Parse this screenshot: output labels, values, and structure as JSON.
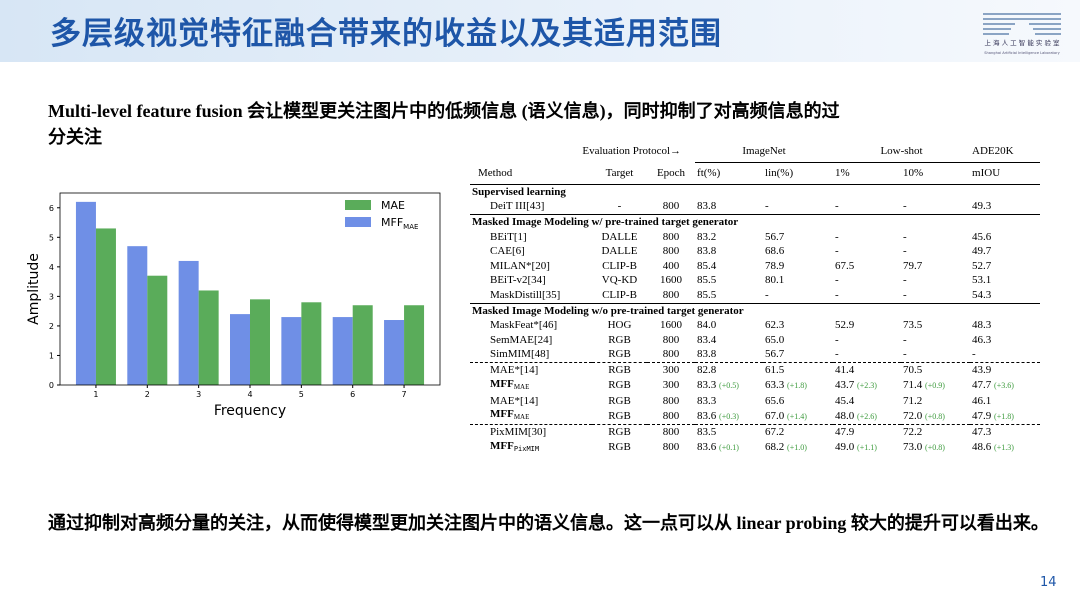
{
  "header": {
    "title": "多层级视觉特征融合带来的收益以及其适用范围",
    "logo_cn": "上 海 人 工 智 能 实 验 室",
    "logo_en": "Shanghai Artificial Intelligence Laboratory"
  },
  "intro": "Multi-level feature fusion 会让模型更关注图片中的低频信息 (语义信息)，同时抑制了对高频信息的过分关注",
  "chart_data": {
    "type": "bar",
    "x_label": "Frequency",
    "y_label": "Amplitude",
    "x": [
      1,
      2,
      3,
      4,
      5,
      6,
      7
    ],
    "xlim": [
      0.3,
      7.7
    ],
    "xticks": [
      1,
      2,
      3,
      4,
      5,
      6,
      7
    ],
    "ylim": [
      0,
      6.5
    ],
    "yticks": [
      0,
      1,
      2,
      3,
      4,
      5,
      6
    ],
    "legend": "upper right",
    "series": [
      {
        "name": "MFF",
        "name_sub": "MAE",
        "color": "#6f8fe6",
        "values": [
          6.2,
          4.7,
          4.2,
          2.4,
          2.3,
          2.3,
          2.2
        ]
      },
      {
        "name": "MAE",
        "color": "#5aac5a",
        "values": [
          5.3,
          3.7,
          3.2,
          2.9,
          2.8,
          2.7,
          2.7
        ]
      }
    ]
  },
  "table": {
    "group_header": [
      "Evaluation Protocol→",
      "ImageNet",
      "Low-shot",
      "ADE20K"
    ],
    "columns": [
      "Method",
      "Target",
      "Epoch",
      "ft(%)",
      "lin(%)",
      "1%",
      "10%",
      "mIOU"
    ],
    "sections": [
      {
        "title": "Supervised learning",
        "groups": [
          [
            [
              "DeiT III[43]",
              "-",
              "800",
              "83.8",
              "-",
              "-",
              "-",
              "49.3"
            ]
          ]
        ]
      },
      {
        "title": "Masked Image Modeling w/ pre-trained target generator",
        "groups": [
          [
            [
              "BEiT[1]",
              "DALLE",
              "800",
              "83.2",
              "56.7",
              "-",
              "-",
              "45.6"
            ],
            [
              "CAE[6]",
              "DALLE",
              "800",
              "83.8",
              "68.6",
              "-",
              "-",
              "49.7"
            ],
            [
              "MILAN*[20]",
              "CLIP-B",
              "400",
              "85.4",
              "78.9",
              "67.5",
              "79.7",
              "52.7"
            ],
            [
              "BEiT-v2[34]",
              "VQ-KD",
              "1600",
              "85.5",
              "80.1",
              "-",
              "-",
              "53.1"
            ],
            [
              "MaskDistill[35]",
              "CLIP-B",
              "800",
              "85.5",
              "-",
              "-",
              "-",
              "54.3"
            ]
          ]
        ]
      },
      {
        "title": "Masked Image Modeling w/o pre-trained target generator",
        "groups": [
          [
            [
              "MaskFeat*[46]",
              "HOG",
              "1600",
              "84.0",
              "62.3",
              "52.9",
              "73.5",
              "48.3"
            ],
            [
              "SemMAE[24]",
              "RGB",
              "800",
              "83.4",
              "65.0",
              "-",
              "-",
              "46.3"
            ],
            [
              "SimMIM[48]",
              "RGB",
              "800",
              "83.8",
              "56.7",
              "-",
              "-",
              "-"
            ]
          ],
          [
            [
              "MAE*[14]",
              "RGB",
              "300",
              "82.8",
              "61.5",
              "41.4",
              "70.5",
              "43.9"
            ],
            [
              {
                "text": "MFF",
                "sub": "MAE"
              },
              "RGB",
              "300",
              {
                "text": "83.3",
                "gain": "(+0.5)"
              },
              {
                "text": "63.3",
                "gain": "(+1.8)"
              },
              {
                "text": "43.7",
                "gain": "(+2.3)"
              },
              {
                "text": "71.4",
                "gain": "(+0.9)"
              },
              {
                "text": "47.7",
                "gain": "(+3.6)"
              }
            ],
            [
              "MAE*[14]",
              "RGB",
              "800",
              "83.3",
              "65.6",
              "45.4",
              "71.2",
              "46.1"
            ],
            [
              {
                "text": "MFF",
                "sub": "MAE"
              },
              "RGB",
              "800",
              {
                "text": "83.6",
                "gain": "(+0.3)"
              },
              {
                "text": "67.0",
                "gain": "(+1.4)"
              },
              {
                "text": "48.0",
                "gain": "(+2.6)"
              },
              {
                "text": "72.0",
                "gain": "(+0.8)"
              },
              {
                "text": "47.9",
                "gain": "(+1.8)"
              }
            ]
          ],
          [
            [
              "PixMIM[30]",
              "RGB",
              "800",
              "83.5",
              "67.2",
              "47.9",
              "72.2",
              "47.3"
            ],
            [
              {
                "text": "MFF",
                "sub": "PixMIM"
              },
              "RGB",
              "800",
              {
                "text": "83.6",
                "gain": "(+0.1)"
              },
              {
                "text": "68.2",
                "gain": "(+1.0)"
              },
              {
                "text": "49.0",
                "gain": "(+1.1)"
              },
              {
                "text": "73.0",
                "gain": "(+0.8)"
              },
              {
                "text": "48.6",
                "gain": "(+1.3)"
              }
            ]
          ]
        ]
      }
    ]
  },
  "conclusion": "通过抑制对高频分量的关注，从而使得模型更加关注图片中的语义信息。这一点可以从 linear probing 较大的提升可以看出来。",
  "page_number": "14"
}
